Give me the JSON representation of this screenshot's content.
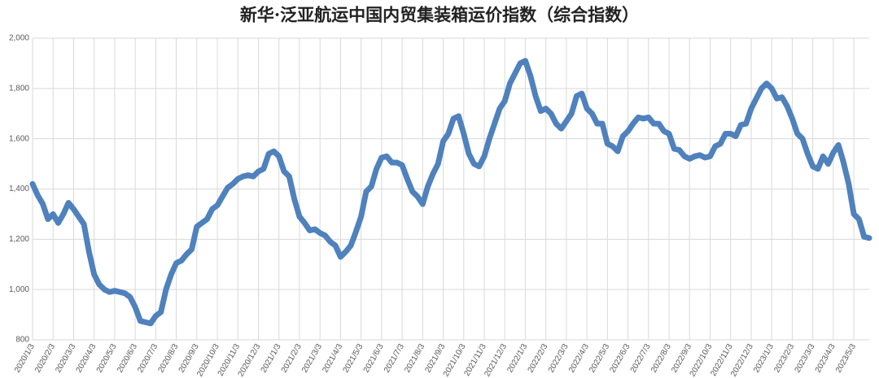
{
  "chart_data": {
    "type": "line",
    "title": "新华·泛亚航运中国内贸集装箱运价指数（综合指数）",
    "categories": [
      "2020/1/3",
      null,
      null,
      null,
      "2020/2/3",
      null,
      null,
      null,
      "2020/3/3",
      null,
      null,
      null,
      "2020/4/3",
      null,
      null,
      null,
      "2020/5/3",
      null,
      null,
      null,
      "2020/6/3",
      null,
      null,
      null,
      "2020/7/3",
      null,
      null,
      null,
      "2020/8/3",
      null,
      null,
      null,
      "2020/9/3",
      null,
      null,
      null,
      "2020/10/3",
      null,
      null,
      null,
      "2020/11/3",
      null,
      null,
      null,
      "2020/12/3",
      null,
      null,
      null,
      "2021/1/3",
      null,
      null,
      null,
      "2021/2/3",
      null,
      null,
      null,
      "2021/3/3",
      null,
      null,
      null,
      "2021/4/3",
      null,
      null,
      null,
      "2021/5/3",
      null,
      null,
      null,
      "2021/6/3",
      null,
      null,
      null,
      "2021/7/3",
      null,
      null,
      null,
      "2021/8/3",
      null,
      null,
      null,
      "2021/9/3",
      null,
      null,
      null,
      "2021/10/3",
      null,
      null,
      null,
      "2021/11/3",
      null,
      null,
      null,
      "2021/12/3",
      null,
      null,
      null,
      "2022/1/3",
      null,
      null,
      null,
      "2022/2/3",
      null,
      null,
      null,
      "2022/3/3",
      null,
      null,
      null,
      "2022/4/3",
      null,
      null,
      null,
      "2022/5/3",
      null,
      null,
      null,
      "2022/6/3",
      null,
      null,
      null,
      "2022/7/3",
      null,
      null,
      null,
      "2022/8/3",
      null,
      null,
      null,
      "2022/9/3",
      null,
      null,
      null,
      "2022/10/3",
      null,
      null,
      null,
      "2022/11/3",
      null,
      null,
      null,
      "2022/12/3",
      null,
      null,
      null,
      "2023/1/3",
      null,
      null,
      null,
      "2023/2/3",
      null,
      null,
      null,
      "2023/3/3",
      null,
      null,
      null,
      "2023/4/3",
      null,
      null,
      null,
      "2023/5/3",
      null,
      null,
      null
    ],
    "values": [
      1420,
      1375,
      1340,
      1280,
      1300,
      1265,
      1300,
      1345,
      1320,
      1290,
      1260,
      1150,
      1060,
      1020,
      1000,
      990,
      995,
      990,
      985,
      970,
      930,
      875,
      870,
      865,
      895,
      910,
      1000,
      1060,
      1105,
      1115,
      1140,
      1160,
      1250,
      1265,
      1280,
      1320,
      1335,
      1370,
      1405,
      1420,
      1440,
      1450,
      1455,
      1450,
      1470,
      1480,
      1540,
      1550,
      1530,
      1470,
      1450,
      1360,
      1290,
      1265,
      1235,
      1240,
      1225,
      1215,
      1190,
      1175,
      1130,
      1150,
      1175,
      1230,
      1290,
      1390,
      1410,
      1480,
      1525,
      1530,
      1505,
      1505,
      1495,
      1440,
      1390,
      1370,
      1340,
      1410,
      1460,
      1500,
      1590,
      1620,
      1680,
      1690,
      1620,
      1540,
      1500,
      1490,
      1530,
      1600,
      1660,
      1720,
      1750,
      1820,
      1860,
      1900,
      1910,
      1850,
      1770,
      1710,
      1720,
      1700,
      1660,
      1640,
      1670,
      1700,
      1770,
      1780,
      1720,
      1700,
      1660,
      1660,
      1580,
      1570,
      1550,
      1610,
      1630,
      1660,
      1685,
      1680,
      1685,
      1660,
      1660,
      1630,
      1620,
      1560,
      1555,
      1530,
      1520,
      1530,
      1535,
      1525,
      1530,
      1570,
      1580,
      1620,
      1620,
      1610,
      1655,
      1660,
      1720,
      1760,
      1800,
      1820,
      1800,
      1760,
      1765,
      1730,
      1680,
      1620,
      1600,
      1540,
      1490,
      1480,
      1530,
      1500,
      1545,
      1575,
      1505,
      1420,
      1300,
      1280,
      1210,
      1205
    ],
    "color": "#4f81bd",
    "ylim": [
      800,
      2000
    ],
    "yticks": [
      800,
      {
        "value": 1000,
        "label": "1,000"
      },
      {
        "value": 1200,
        "label": "1,200"
      },
      {
        "value": 1400,
        "label": "1,400"
      },
      {
        "value": 1600,
        "label": "1,600"
      },
      {
        "value": 1800,
        "label": "1,800"
      },
      {
        "value": 2000,
        "label": "2,000"
      }
    ],
    "grid": true
  }
}
